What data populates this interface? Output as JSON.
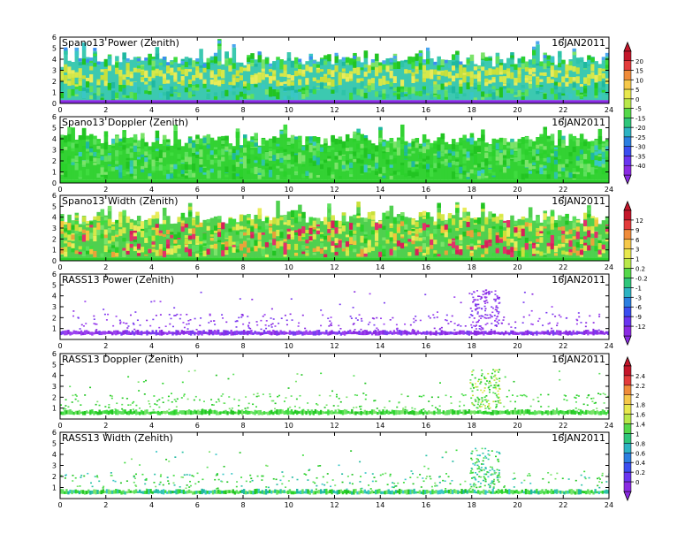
{
  "chart_data": [
    {
      "type": "heatmap",
      "title": "Spano13  Power  (Zenith)",
      "date": "16JAN2011",
      "xlim": [
        0,
        24
      ],
      "ylim": [
        0,
        6
      ],
      "xticks": [
        "0",
        "2",
        "4",
        "6",
        "8",
        "10",
        "12",
        "14",
        "16",
        "18",
        "20",
        "22",
        "24"
      ],
      "yticks": [
        "0",
        "1",
        "2",
        "3",
        "4",
        "5",
        "6"
      ],
      "colorbar": {
        "labels": [
          "20",
          "15",
          "10",
          "5",
          "0",
          "-5",
          "-15",
          "-20",
          "-25",
          "-30",
          "-35",
          "-40"
        ]
      }
    },
    {
      "type": "heatmap",
      "title": "Spano13  Doppler  (Zenith)",
      "date": "16JAN2011",
      "xlim": [
        0,
        24
      ],
      "ylim": [
        0,
        6
      ],
      "xticks": [
        "0",
        "2",
        "4",
        "6",
        "8",
        "10",
        "12",
        "14",
        "16",
        "18",
        "20",
        "22",
        "24"
      ],
      "yticks": [
        "0",
        "1",
        "2",
        "3",
        "4",
        "5",
        "6"
      ]
    },
    {
      "type": "heatmap",
      "title": "Spano13  Width  (Zenith)",
      "date": "16JAN2011",
      "xlim": [
        0,
        24
      ],
      "ylim": [
        0,
        6
      ],
      "xticks": [
        "0",
        "2",
        "4",
        "6",
        "8",
        "10",
        "12",
        "14",
        "16",
        "18",
        "20",
        "22",
        "24"
      ],
      "yticks": [
        "0",
        "1",
        "2",
        "3",
        "4",
        "5",
        "6"
      ],
      "colorbar": {
        "labels": [
          "12",
          "9",
          "6",
          "3",
          "1",
          "0.2",
          "-0.2",
          "-1",
          "-3",
          "-6",
          "-9",
          "-12"
        ]
      }
    },
    {
      "type": "heatmap",
      "title": "RASS13  Power  (Zenith)",
      "date": "16JAN2011",
      "xlim": [
        0,
        24
      ],
      "ylim": [
        0,
        6
      ],
      "xticks": [
        "0",
        "2",
        "4",
        "6",
        "8",
        "10",
        "12",
        "14",
        "16",
        "18",
        "20",
        "22",
        "24"
      ],
      "yticks": [
        "1",
        "2",
        "3",
        "4",
        "5",
        "6"
      ]
    },
    {
      "type": "heatmap",
      "title": "RASS13  Doppler  (Zenith)",
      "date": "16JAN2011",
      "xlim": [
        0,
        24
      ],
      "ylim": [
        0,
        6
      ],
      "xticks": [
        "0",
        "2",
        "4",
        "6",
        "8",
        "10",
        "12",
        "14",
        "16",
        "18",
        "20",
        "22",
        "24"
      ],
      "yticks": [
        "1",
        "2",
        "3",
        "4",
        "5",
        "6"
      ],
      "colorbar": {
        "labels": [
          "2.4",
          "2.2",
          "2",
          "1.8",
          "1.6",
          "1.4",
          "1",
          "0.8",
          "0.6",
          "0.4",
          "0.2",
          "0"
        ]
      }
    },
    {
      "type": "heatmap",
      "title": "RASS13  Width  (Zenith)",
      "date": "16JAN2011",
      "xlim": [
        0,
        24
      ],
      "ylim": [
        0,
        6
      ],
      "xticks": [
        "0",
        "2",
        "4",
        "6",
        "8",
        "10",
        "12",
        "14",
        "16",
        "18",
        "20",
        "22",
        "24"
      ],
      "yticks": [
        "1",
        "2",
        "3",
        "4",
        "5",
        "6"
      ]
    }
  ]
}
